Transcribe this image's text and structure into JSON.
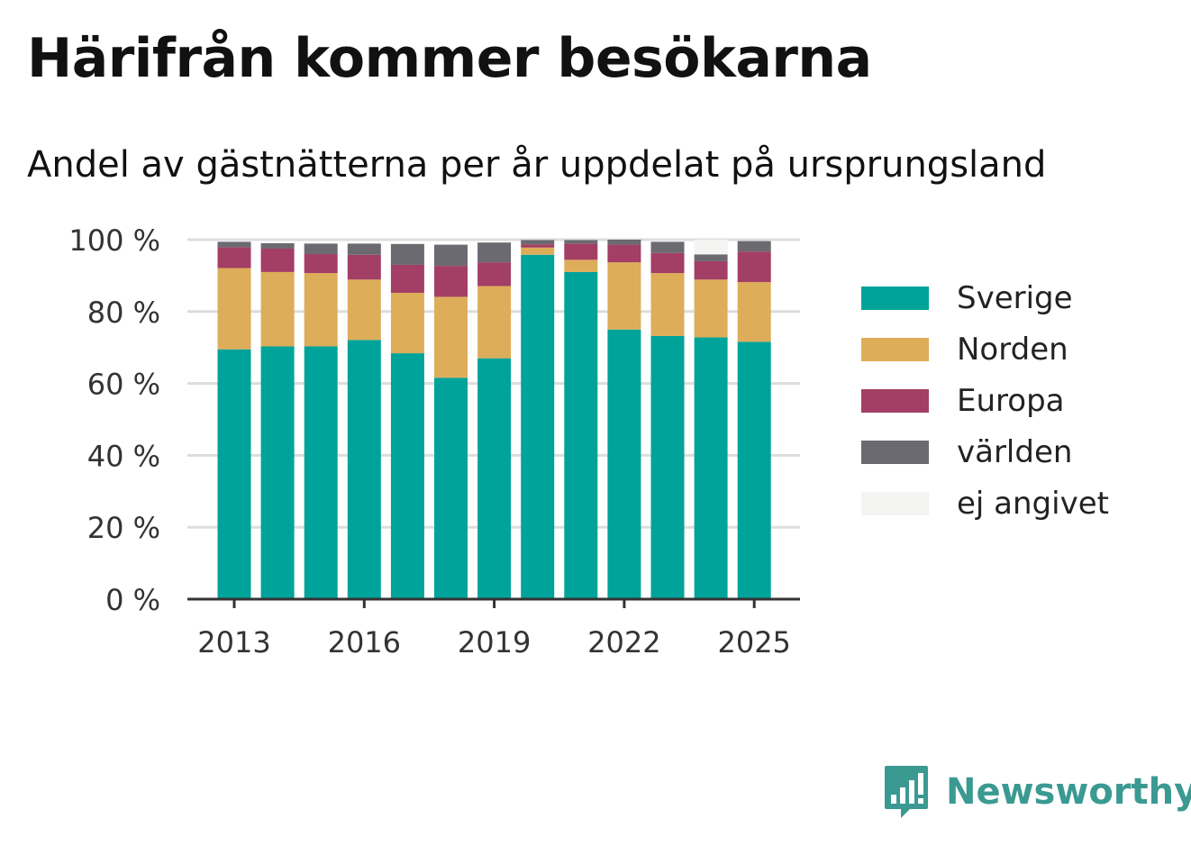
{
  "title": "Härifrån kommer besökarna",
  "subtitle": "Andel av gästnätterna per år uppdelat på ursprungsland",
  "brand": {
    "name": "Newsworthy",
    "logo_icon": "bar-chart-speech-bubble-icon",
    "color": "#3a9a92"
  },
  "chart_data": {
    "type": "bar",
    "stacked": true,
    "title": "Härifrån kommer besökarna",
    "subtitle": "Andel av gästnätterna per år uppdelat på ursprungsland",
    "xlabel": "",
    "ylabel": "",
    "ylim": [
      0,
      100
    ],
    "yticks": [
      0,
      20,
      40,
      60,
      80,
      100
    ],
    "ytick_labels": [
      "0 %",
      "20 %",
      "40 %",
      "60 %",
      "80 %",
      "100 %"
    ],
    "x_tick_labels": [
      "2013",
      "2016",
      "2019",
      "2022",
      "2025"
    ],
    "categories": [
      "2013",
      "2014",
      "2015",
      "2016",
      "2017",
      "2018",
      "2019",
      "2020",
      "2021",
      "2022",
      "2023",
      "2024",
      "2025"
    ],
    "grid": true,
    "legend_position": "right",
    "series": [
      {
        "name": "Sverige",
        "color": "#00a39a",
        "values": [
          69.5,
          70.3,
          70.3,
          72.1,
          68.4,
          61.6,
          67.0,
          95.8,
          91.0,
          75.0,
          73.2,
          72.8,
          71.6
        ]
      },
      {
        "name": "Norden",
        "color": "#ddad5a",
        "values": [
          22.6,
          20.7,
          20.4,
          16.8,
          16.8,
          22.5,
          20.1,
          2.0,
          3.4,
          18.7,
          17.5,
          16.1,
          16.6
        ]
      },
      {
        "name": "Europa",
        "color": "#a33e65",
        "values": [
          5.8,
          6.5,
          5.3,
          6.9,
          7.8,
          8.6,
          6.6,
          0.9,
          4.5,
          4.9,
          5.6,
          5.1,
          8.5
        ]
      },
      {
        "name": "världen",
        "color": "#6b6a71",
        "values": [
          1.5,
          1.5,
          2.9,
          3.1,
          5.8,
          5.9,
          5.5,
          1.2,
          1.0,
          1.4,
          3.1,
          1.9,
          2.9
        ]
      },
      {
        "name": "ej angivet",
        "color": "#f4f4f2",
        "values": [
          0,
          0,
          0,
          0,
          0,
          0,
          0,
          0,
          0,
          0,
          0,
          4.1,
          0
        ]
      }
    ]
  }
}
